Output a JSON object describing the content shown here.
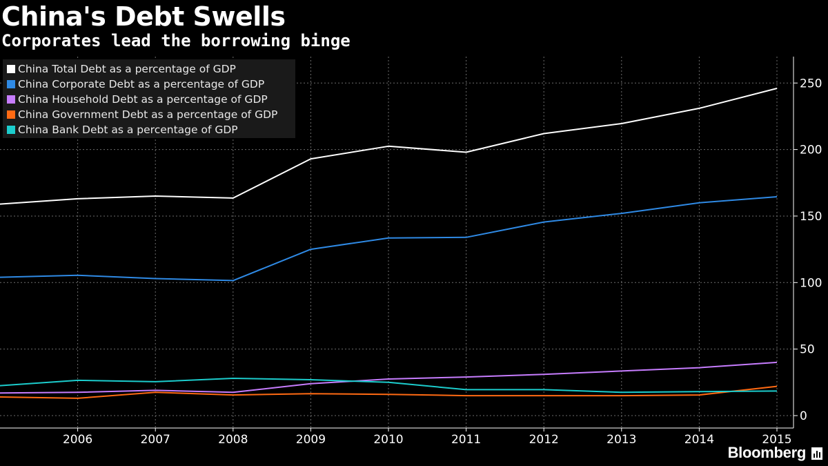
{
  "header": {
    "title": "China's Debt Swells",
    "subtitle": "Corporates lead the borrowing binge"
  },
  "footer": {
    "brand": "Bloomberg",
    "brand_icon": "bar-chart-icon"
  },
  "colors": {
    "background": "#000000",
    "grid": "#6e6e6e",
    "axis": "#ffffff",
    "text": "#ffffff"
  },
  "chart_data": {
    "type": "line",
    "title": "China's Debt Swells",
    "subtitle": "Corporates lead the borrowing binge",
    "xlabel": "",
    "ylabel": "",
    "x": [
      2005,
      2006,
      2007,
      2008,
      2009,
      2010,
      2011,
      2012,
      2013,
      2014,
      2015
    ],
    "x_ticks": [
      "2006",
      "2007",
      "2008",
      "2009",
      "2010",
      "2011",
      "2012",
      "2013",
      "2014",
      "2015"
    ],
    "xlim": [
      2005,
      2015.2
    ],
    "ylim": [
      -7,
      270
    ],
    "y_ticks": [
      0,
      50,
      100,
      150,
      200,
      250
    ],
    "y_tick_labels": [
      "0",
      "50",
      "100",
      "150",
      "200",
      "250"
    ],
    "y_axis_side": "right",
    "grid": true,
    "legend_position": "top-left",
    "series": [
      {
        "name": "China Total Debt as a percentage of GDP",
        "color": "#ffffff",
        "values": [
          159,
          163,
          165,
          163.5,
          193,
          202.5,
          198,
          212,
          219.5,
          231,
          246
        ]
      },
      {
        "name": "China Corporate Debt as a percentage of GDP",
        "color": "#2f8ae5",
        "values": [
          104,
          105.5,
          103,
          101.5,
          125,
          133.5,
          134,
          145.5,
          152,
          160,
          164.5
        ]
      },
      {
        "name": "China Household Debt as a percentage of GDP",
        "color": "#c77dff",
        "values": [
          17,
          17.5,
          19,
          17.5,
          24,
          27.5,
          29,
          31,
          33.5,
          36,
          40
        ]
      },
      {
        "name": "China Government Debt as a percentage of GDP",
        "color": "#ff6a13",
        "values": [
          14,
          13,
          17.5,
          15.5,
          16.5,
          16,
          15,
          15,
          15,
          15.5,
          22
        ]
      },
      {
        "name": "China Bank Debt as a percentage of GDP",
        "color": "#1ccdcd",
        "values": [
          22.5,
          26.5,
          25.5,
          28,
          27,
          25,
          19.5,
          19.5,
          17.5,
          18,
          18.5
        ]
      }
    ]
  }
}
